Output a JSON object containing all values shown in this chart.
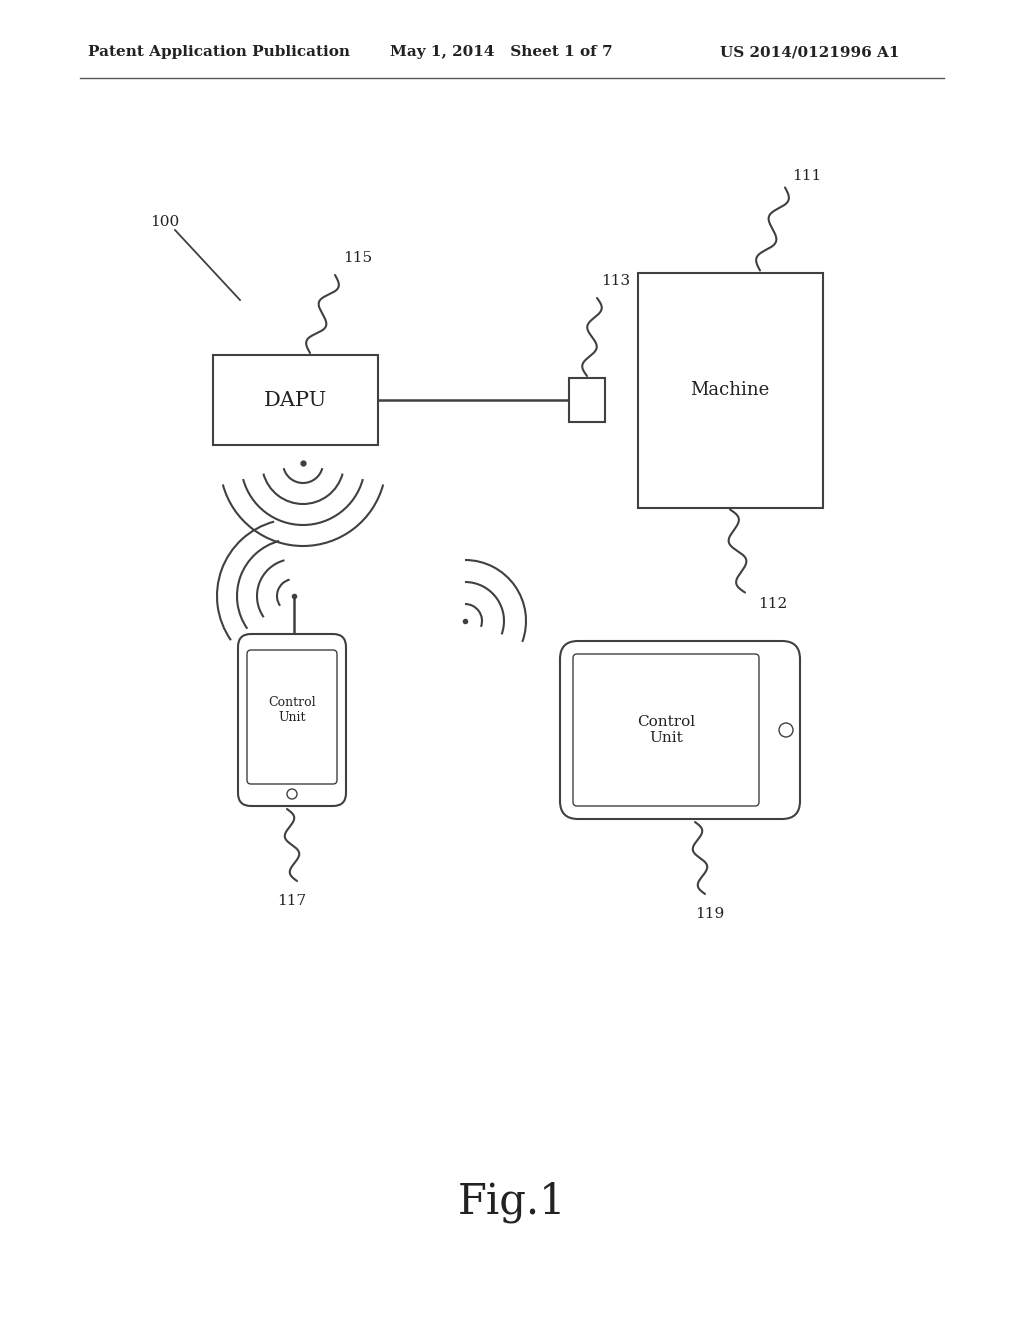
{
  "bg_color": "#ffffff",
  "header_left": "Patent Application Publication",
  "header_mid": "May 1, 2014   Sheet 1 of 7",
  "header_right": "US 2014/0121996 A1",
  "fig_label": "Fig.1",
  "label_100": "100",
  "label_111": "111",
  "label_112": "112",
  "label_113": "113",
  "label_115": "115",
  "label_117": "117",
  "label_119": "119",
  "dapu_text": "DAPU",
  "machine_text": "Machine",
  "control_unit_text": "Control\nUnit",
  "line_color": "#404040",
  "text_color": "#222222"
}
